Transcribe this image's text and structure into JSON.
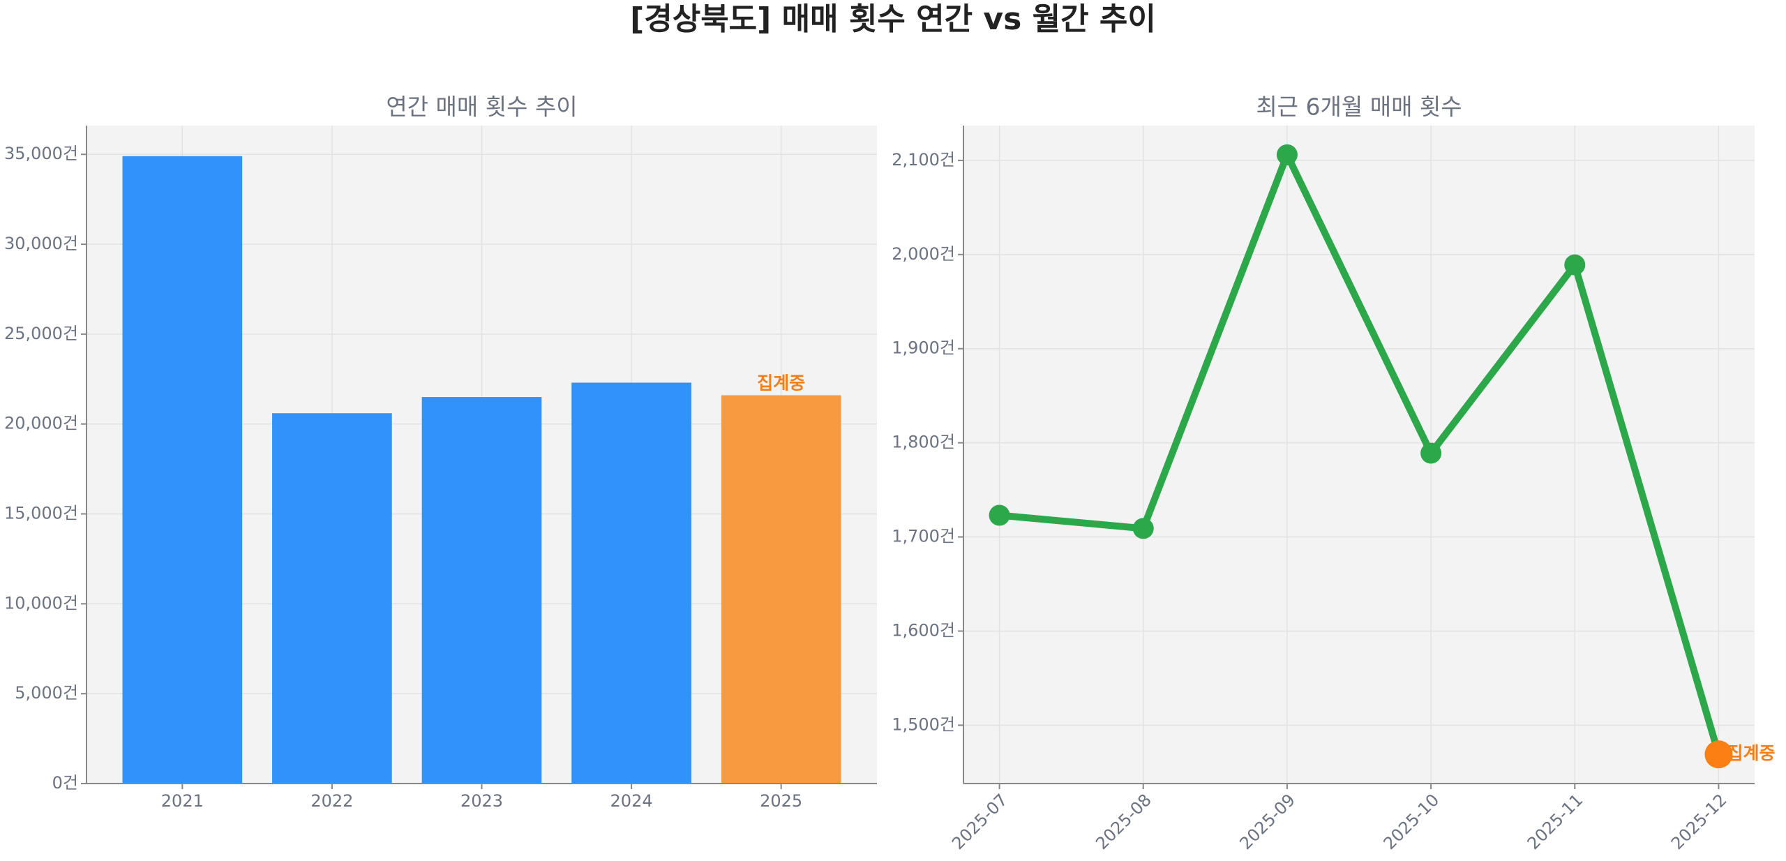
{
  "title": "[경상북도] 매매 횟수 연간 vs 월간 추이",
  "chart_data": [
    {
      "type": "bar",
      "title": "연간 매매 횟수 추이",
      "categories": [
        "2021",
        "2022",
        "2023",
        "2024",
        "2025"
      ],
      "values": [
        34900,
        20600,
        21500,
        22300,
        21600
      ],
      "colors": [
        "#3292fb",
        "#3292fb",
        "#3292fb",
        "#3292fb",
        "#f89a40"
      ],
      "annotation": "집계중",
      "annotation_color": "#f57f17",
      "ylim": [
        0,
        36600
      ],
      "yticks": [
        {
          "value": 0,
          "label": "0건"
        },
        {
          "value": 5000,
          "label": "5,000건"
        },
        {
          "value": 10000,
          "label": "10,000건"
        },
        {
          "value": 15000,
          "label": "15,000건"
        },
        {
          "value": 20000,
          "label": "20,000건"
        },
        {
          "value": 25000,
          "label": "25,000건"
        },
        {
          "value": 30000,
          "label": "30,000건"
        },
        {
          "value": 35000,
          "label": "35,000건"
        }
      ],
      "grid": true
    },
    {
      "type": "line",
      "title": "최근 6개월 매매 횟수",
      "categories": [
        "2025-07",
        "2025-08",
        "2025-09",
        "2025-10",
        "2025-11",
        "2025-12"
      ],
      "values": [
        1723,
        1709,
        2106,
        1789,
        1989,
        1469
      ],
      "color": "#2ca84a",
      "marker_colors": [
        "#2ca84a",
        "#2ca84a",
        "#2ca84a",
        "#2ca84a",
        "#2ca84a",
        "#fb7f12"
      ],
      "annotation": "집계중",
      "annotation_color": "#f57f17",
      "ylim": [
        1438,
        2137
      ],
      "yticks": [
        {
          "value": 1500,
          "label": "1,500건"
        },
        {
          "value": 1600,
          "label": "1,600건"
        },
        {
          "value": 1700,
          "label": "1,700건"
        },
        {
          "value": 1800,
          "label": "1,800건"
        },
        {
          "value": 1900,
          "label": "1,900건"
        },
        {
          "value": 2000,
          "label": "2,000건"
        },
        {
          "value": 2100,
          "label": "2,100건"
        }
      ],
      "grid": true
    }
  ]
}
